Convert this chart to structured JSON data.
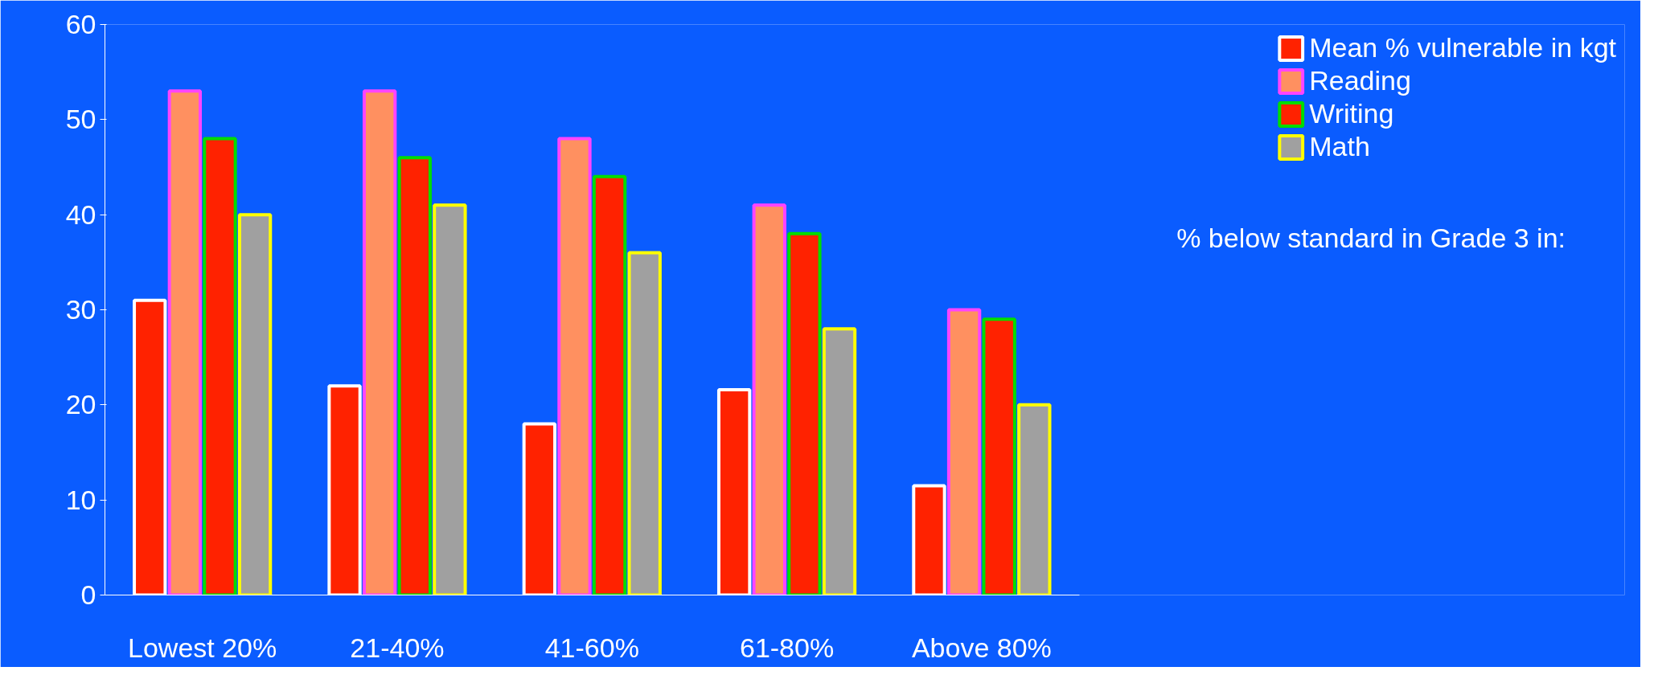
{
  "chart_data": {
    "type": "bar",
    "categories": [
      "Lowest 20%",
      "21-40%",
      "41-60%",
      "61-80%",
      "Above 80%"
    ],
    "series": [
      {
        "name": "Mean % vulnerable in kgt",
        "color": "#ff2200",
        "values": [
          31,
          22,
          18,
          21.6,
          11.5
        ]
      },
      {
        "name": "Reading",
        "color": "#ff9060",
        "values": [
          53,
          53,
          48,
          41,
          30
        ]
      },
      {
        "name": "Writing",
        "color": "#ff2200",
        "values": [
          48,
          46,
          44,
          38,
          29
        ]
      },
      {
        "name": "Math",
        "color": "#a0a0a0",
        "values": [
          40,
          41,
          36,
          28,
          20
        ]
      }
    ],
    "ylim": [
      0,
      60
    ],
    "yticks": [
      0,
      10,
      20,
      30,
      40,
      50,
      60
    ],
    "grid": false,
    "legend": "right",
    "annotations": [
      "% below standard in Grade 3 in:"
    ]
  }
}
